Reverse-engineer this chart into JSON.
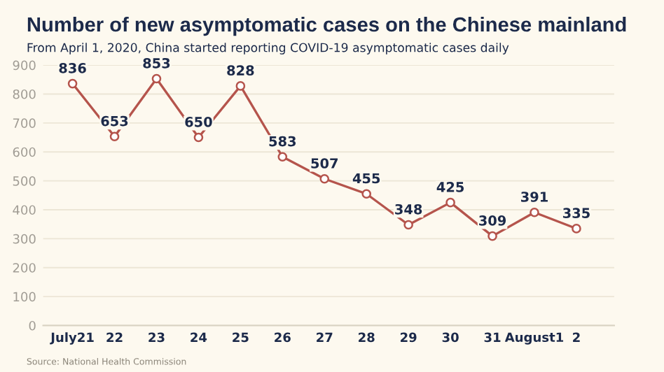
{
  "chart_data": {
    "type": "line",
    "title": "Number of new asymptomatic cases on the Chinese mainland",
    "subtitle": "From April 1, 2020, China started reporting COVID-19 asymptomatic cases daily",
    "categories": [
      "July21",
      "22",
      "23",
      "24",
      "25",
      "26",
      "27",
      "28",
      "29",
      "30",
      "31",
      "August1",
      "2"
    ],
    "series": [
      {
        "color": "#b5544c",
        "values": [
          836,
          653,
          853,
          650,
          828,
          583,
          507,
          455,
          348,
          425,
          309,
          391,
          335
        ]
      }
    ],
    "ylim": [
      0,
      900
    ],
    "yticks": [
      0,
      100,
      200,
      300,
      400,
      500,
      600,
      700,
      800,
      900
    ],
    "grid": "y",
    "marker": "circle",
    "line_style": "solid",
    "data_labels": true,
    "annotations": [
      "Source: National Health Commission"
    ]
  }
}
